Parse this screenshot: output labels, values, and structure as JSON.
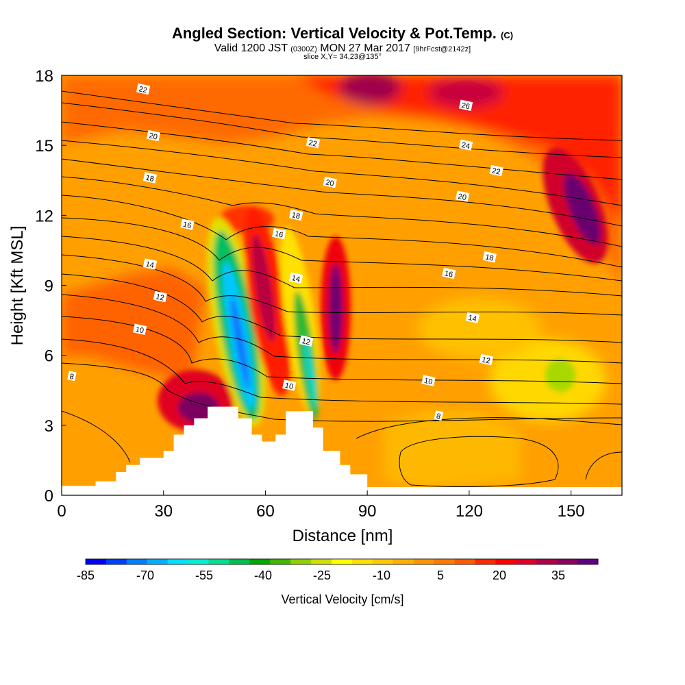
{
  "chart_data": {
    "type": "heatmap",
    "title_main": "Angled Section: Vertical Velocity & Pot.Temp.",
    "title_unit": "(C)",
    "subtitle_valid": "Valid 1200 JST",
    "subtitle_zulu": "(0300Z)",
    "subtitle_date": "MON 27 Mar 2017",
    "subtitle_fcst": "[9hrFcst@2142z]",
    "slice_label": "slice X,Y= 34,23@135°",
    "xlabel": "Distance [nm]",
    "ylabel": "Height [Kft MSL]",
    "xlim": [
      0,
      165
    ],
    "ylim": [
      0,
      18
    ],
    "xticks": [
      0,
      30,
      60,
      90,
      120,
      150
    ],
    "yticks": [
      0,
      3,
      6,
      9,
      12,
      15,
      18
    ],
    "colorbar": {
      "label": "Vertical Velocity [cm/s]",
      "tick_labels": [
        "-85",
        "-70",
        "-55",
        "-40",
        "-25",
        "-10",
        "5",
        "20",
        "35"
      ],
      "colors": [
        "#0000ff",
        "#0040ff",
        "#0080ff",
        "#00b0ff",
        "#00e0ff",
        "#00f0d0",
        "#00e090",
        "#00c050",
        "#00a800",
        "#40b800",
        "#90d000",
        "#d0e000",
        "#ffff00",
        "#ffe000",
        "#ffc800",
        "#ffb000",
        "#ff9600",
        "#ff7c00",
        "#ff5a00",
        "#ff2800",
        "#ff0000",
        "#e00028",
        "#b00048",
        "#8c0060",
        "#600080"
      ]
    },
    "contour_labels": [
      {
        "text": "22",
        "x": 24,
        "y": 17.4
      },
      {
        "text": "20",
        "x": 27,
        "y": 15.4
      },
      {
        "text": "18",
        "x": 26,
        "y": 13.6
      },
      {
        "text": "16",
        "x": 37,
        "y": 11.6
      },
      {
        "text": "14",
        "x": 26,
        "y": 9.9
      },
      {
        "text": "12",
        "x": 29,
        "y": 8.5
      },
      {
        "text": "10",
        "x": 23,
        "y": 7.1
      },
      {
        "text": "8",
        "x": 3,
        "y": 5.1
      },
      {
        "text": "26",
        "x": 119,
        "y": 16.7
      },
      {
        "text": "24",
        "x": 119,
        "y": 15.0
      },
      {
        "text": "22",
        "x": 74,
        "y": 15.1
      },
      {
        "text": "22",
        "x": 128,
        "y": 13.9
      },
      {
        "text": "20",
        "x": 79,
        "y": 13.4
      },
      {
        "text": "20",
        "x": 118,
        "y": 12.8
      },
      {
        "text": "18",
        "x": 69,
        "y": 12.0
      },
      {
        "text": "18",
        "x": 126,
        "y": 10.2
      },
      {
        "text": "16",
        "x": 64,
        "y": 11.2
      },
      {
        "text": "16",
        "x": 114,
        "y": 9.5
      },
      {
        "text": "14",
        "x": 69,
        "y": 9.3
      },
      {
        "text": "14",
        "x": 121,
        "y": 7.6
      },
      {
        "text": "12",
        "x": 72,
        "y": 6.6
      },
      {
        "text": "12",
        "x": 125,
        "y": 5.8
      },
      {
        "text": "10",
        "x": 67,
        "y": 4.7
      },
      {
        "text": "10",
        "x": 108,
        "y": 4.9
      },
      {
        "text": "8",
        "x": 111,
        "y": 3.4
      }
    ],
    "terrain": [
      [
        10,
        0.6
      ],
      [
        16,
        1.0
      ],
      [
        19,
        1.3
      ],
      [
        23,
        1.6
      ],
      [
        30,
        1.9
      ],
      [
        33,
        2.6
      ],
      [
        36,
        3.0
      ],
      [
        39,
        3.3
      ],
      [
        43,
        3.8
      ],
      [
        50,
        3.8
      ],
      [
        52,
        3.3
      ],
      [
        56,
        2.6
      ],
      [
        59,
        2.3
      ],
      [
        63,
        2.6
      ],
      [
        66,
        3.6
      ],
      [
        72,
        3.6
      ],
      [
        74,
        2.9
      ],
      [
        77,
        1.9
      ],
      [
        82,
        1.3
      ],
      [
        85,
        0.9
      ],
      [
        90,
        0.0
      ]
    ]
  }
}
